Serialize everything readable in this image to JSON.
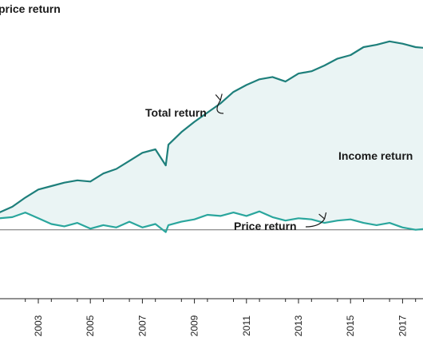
{
  "chart_data": {
    "type": "line",
    "title": "price return",
    "x": [
      2001.0,
      2001.5,
      2002.0,
      2002.5,
      2003.0,
      2003.5,
      2004.0,
      2004.5,
      2005.0,
      2005.5,
      2006.0,
      2006.5,
      2007.0,
      2007.5,
      2007.9,
      2008.0,
      2008.5,
      2009.0,
      2009.5,
      2010.0,
      2010.5,
      2011.0,
      2011.5,
      2012.0,
      2012.5,
      2013.0,
      2013.5,
      2014.0,
      2014.5,
      2015.0,
      2015.5,
      2016.0,
      2016.5,
      2017.0,
      2017.5,
      2018.0
    ],
    "x_ticks": [
      "2003",
      "2005",
      "2007",
      "2009",
      "2011",
      "2013",
      "2015",
      "2017"
    ],
    "x_tick_values": [
      2003,
      2005,
      2007,
      2009,
      2011,
      2013,
      2015,
      2017
    ],
    "xlim": [
      2001.3,
      2017.6
    ],
    "ylim": [
      -6.0,
      20.0
    ],
    "grid": false,
    "series": [
      {
        "name": "Total return",
        "color": "#1e7f7b",
        "values": [
          0.4,
          1.5,
          2.0,
          2.8,
          3.5,
          3.8,
          4.1,
          4.3,
          4.2,
          4.9,
          5.3,
          6.0,
          6.7,
          7.0,
          5.6,
          7.4,
          8.5,
          9.4,
          10.2,
          11.0,
          12.0,
          12.6,
          13.1,
          13.3,
          12.9,
          13.6,
          13.8,
          14.3,
          14.9,
          15.2,
          15.9,
          16.1,
          16.4,
          16.2,
          15.9,
          15.8
        ]
      },
      {
        "name": "Price return",
        "color": "#2aa69d",
        "values": [
          0.6,
          1.0,
          1.1,
          1.5,
          1.0,
          0.5,
          0.3,
          0.6,
          0.1,
          0.4,
          0.2,
          0.7,
          0.2,
          0.5,
          -0.2,
          0.4,
          0.7,
          0.9,
          1.3,
          1.2,
          1.5,
          1.2,
          1.6,
          1.1,
          0.8,
          1.0,
          0.9,
          0.6,
          0.8,
          0.9,
          0.6,
          0.4,
          0.6,
          0.2,
          0.0,
          0.1
        ]
      }
    ],
    "area": {
      "name": "Income return",
      "fill": "#eaf4f4",
      "between": [
        "Price return",
        "Total return"
      ]
    },
    "baseline": {
      "y": 0.0,
      "color": "#6f6f6f"
    },
    "annotations": [
      {
        "text": "Total return",
        "points_to": {
          "x": 2010.0,
          "y": 11.0
        }
      },
      {
        "text": "Price return",
        "points_to": {
          "x": 2014.0,
          "y": 0.6
        }
      },
      {
        "text": "Income return"
      }
    ]
  }
}
